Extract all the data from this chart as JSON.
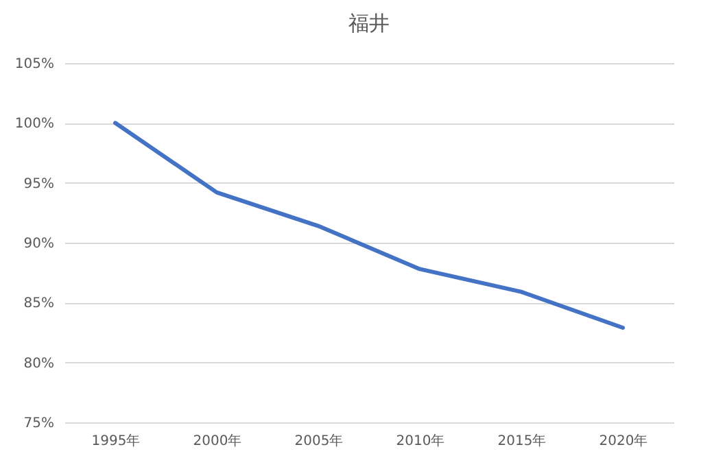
{
  "chart_data": {
    "type": "line",
    "title": "福井",
    "categories": [
      "1995年",
      "2000年",
      "2005年",
      "2010年",
      "2015年",
      "2020年"
    ],
    "series": [
      {
        "color": "#4472c4",
        "values": [
          100,
          94.2,
          91.4,
          87.8,
          85.9,
          82.9
        ]
      }
    ],
    "ylim": [
      75,
      105
    ],
    "yticks": [
      {
        "value": 75,
        "label": "75%"
      },
      {
        "value": 80,
        "label": "80%"
      },
      {
        "value": 85,
        "label": "85%"
      },
      {
        "value": 90,
        "label": "90%"
      },
      {
        "value": 95,
        "label": "95%"
      },
      {
        "value": 100,
        "label": "100%"
      },
      {
        "value": 105,
        "label": "105%"
      }
    ],
    "grid": "y",
    "marker": "none",
    "line_style": "solid"
  }
}
